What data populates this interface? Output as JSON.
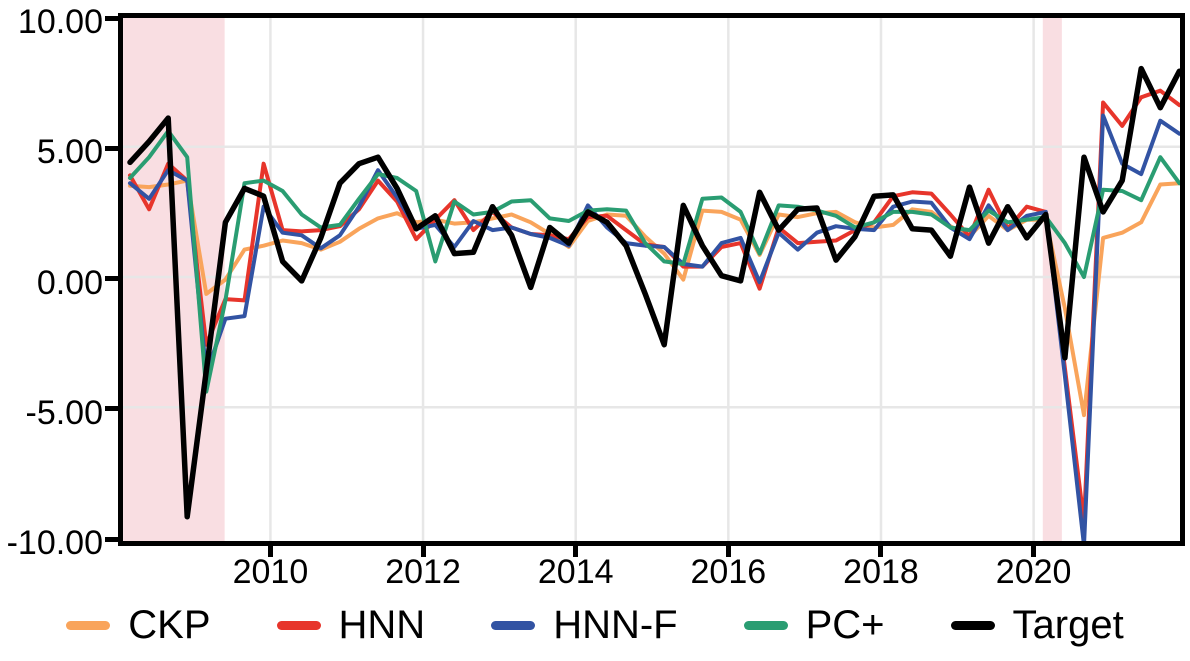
{
  "figure": {
    "background": "#ffffff"
  },
  "axes": {
    "yticks": [
      {
        "value": 10,
        "label": "10.00"
      },
      {
        "value": 5,
        "label": "5.00"
      },
      {
        "value": 0,
        "label": "0.00"
      },
      {
        "value": -5,
        "label": "-5.00"
      },
      {
        "value": -10,
        "label": "-10.00"
      }
    ],
    "xticks": [
      {
        "value": 2010,
        "label": "2010"
      },
      {
        "value": 2012,
        "label": "2012"
      },
      {
        "value": 2014,
        "label": "2014"
      },
      {
        "value": 2016,
        "label": "2016"
      },
      {
        "value": 2018,
        "label": "2018"
      },
      {
        "value": 2020,
        "label": "2020"
      }
    ]
  },
  "chart_data": {
    "type": "line",
    "title": "",
    "xlabel": "",
    "ylabel": "",
    "ylim": [
      -10,
      10
    ],
    "xlim_time": [
      2008.07,
      2022.0
    ],
    "grid": true,
    "gridline_color": "#E7E7E7",
    "legend_position": "bottom",
    "recession_band_color": "#F9DEE2",
    "recession_bands_time": [
      [
        2008.07,
        2009.4
      ],
      [
        2020.12,
        2020.37
      ]
    ],
    "quarters": [
      "2008Q1",
      "2008Q2",
      "2008Q3",
      "2008Q4",
      "2009Q1",
      "2009Q2",
      "2009Q3",
      "2009Q4",
      "2010Q1",
      "2010Q2",
      "2010Q3",
      "2010Q4",
      "2011Q1",
      "2011Q2",
      "2011Q3",
      "2011Q4",
      "2012Q1",
      "2012Q2",
      "2012Q3",
      "2012Q4",
      "2013Q1",
      "2013Q2",
      "2013Q3",
      "2013Q4",
      "2014Q1",
      "2014Q2",
      "2014Q3",
      "2014Q4",
      "2015Q1",
      "2015Q2",
      "2015Q3",
      "2015Q4",
      "2016Q1",
      "2016Q2",
      "2016Q3",
      "2016Q4",
      "2017Q1",
      "2017Q2",
      "2017Q3",
      "2017Q4",
      "2018Q1",
      "2018Q2",
      "2018Q3",
      "2018Q4",
      "2019Q1",
      "2019Q2",
      "2019Q3",
      "2019Q4",
      "2020Q1",
      "2020Q2",
      "2020Q3",
      "2020Q4",
      "2021Q1",
      "2021Q2",
      "2021Q3",
      "2021Q4"
    ],
    "series": [
      {
        "name": "CKP",
        "color": "#F9A45B",
        "width": 4,
        "values": [
          3.5,
          3.45,
          3.55,
          3.7,
          -0.65,
          -0.1,
          1.05,
          1.2,
          1.4,
          1.3,
          1.05,
          1.35,
          1.85,
          2.25,
          2.45,
          2.1,
          2.2,
          2.05,
          2.1,
          2.25,
          2.4,
          2.1,
          1.65,
          1.15,
          2.15,
          2.4,
          2.35,
          1.55,
          0.9,
          -0.1,
          2.55,
          2.5,
          2.2,
          0.85,
          2.4,
          2.3,
          2.45,
          2.5,
          2.1,
          1.9,
          2.0,
          2.6,
          2.5,
          1.95,
          1.55,
          2.35,
          1.8,
          2.2,
          2.2,
          -1.2,
          -5.3,
          1.5,
          1.7,
          2.1,
          3.55,
          3.6
        ]
      },
      {
        "name": "HNN",
        "color": "#E7352B",
        "width": 4,
        "values": [
          3.9,
          2.6,
          4.35,
          3.7,
          -2.6,
          -0.85,
          -0.9,
          4.35,
          1.8,
          1.75,
          1.8,
          1.95,
          2.6,
          3.7,
          2.9,
          1.45,
          2.2,
          2.95,
          1.8,
          2.5,
          1.9,
          1.65,
          1.6,
          1.45,
          2.3,
          2.35,
          1.8,
          1.25,
          1.15,
          0.4,
          0.4,
          1.15,
          1.3,
          -0.45,
          1.9,
          1.3,
          1.35,
          1.4,
          1.8,
          2.1,
          3.1,
          3.25,
          3.2,
          2.4,
          1.55,
          3.35,
          1.85,
          2.7,
          2.5,
          -3.5,
          -9.4,
          6.7,
          5.8,
          6.9,
          7.15,
          6.6
        ]
      },
      {
        "name": "HNN-F",
        "color": "#3253A3",
        "width": 4,
        "values": [
          3.6,
          3.0,
          4.1,
          3.7,
          -3.7,
          -1.6,
          -1.5,
          2.7,
          1.7,
          1.6,
          1.1,
          1.6,
          2.7,
          4.1,
          3.05,
          1.85,
          2.0,
          1.15,
          2.15,
          1.8,
          1.9,
          1.65,
          1.5,
          1.2,
          2.75,
          1.9,
          1.3,
          1.2,
          1.15,
          0.5,
          0.4,
          1.3,
          1.5,
          -0.2,
          1.7,
          1.05,
          1.7,
          1.95,
          1.85,
          1.8,
          2.7,
          2.9,
          2.85,
          1.9,
          1.45,
          2.75,
          1.8,
          2.35,
          2.5,
          -3.8,
          -10.3,
          6.2,
          4.35,
          3.95,
          6.0,
          5.5
        ]
      },
      {
        "name": "PC+",
        "color": "#2A9D72",
        "width": 4,
        "values": [
          3.8,
          4.6,
          5.6,
          4.6,
          -4.4,
          -0.9,
          3.6,
          3.7,
          3.3,
          2.4,
          1.9,
          2.0,
          3.0,
          3.95,
          3.8,
          3.3,
          0.6,
          2.9,
          2.4,
          2.5,
          2.9,
          2.95,
          2.25,
          2.15,
          2.55,
          2.6,
          2.55,
          1.3,
          0.6,
          0.5,
          3.0,
          3.05,
          2.5,
          0.9,
          2.75,
          2.7,
          2.55,
          2.35,
          1.9,
          2.1,
          2.5,
          2.5,
          2.4,
          1.9,
          1.8,
          2.55,
          2.1,
          2.2,
          2.3,
          1.3,
          0.0,
          3.35,
          3.3,
          2.95,
          4.6,
          3.6
        ]
      },
      {
        "name": "Target",
        "color": "#000000",
        "width": 5.5,
        "values": [
          4.4,
          5.2,
          6.1,
          -9.2,
          -3.6,
          2.1,
          3.4,
          3.1,
          0.6,
          -0.15,
          1.5,
          3.6,
          4.35,
          4.6,
          3.4,
          1.85,
          2.35,
          0.9,
          0.95,
          2.7,
          1.6,
          -0.4,
          1.9,
          1.3,
          2.5,
          2.1,
          1.2,
          -0.65,
          -2.6,
          2.75,
          1.2,
          0.05,
          -0.15,
          3.25,
          1.8,
          2.6,
          2.65,
          0.65,
          1.55,
          3.1,
          3.15,
          1.85,
          1.8,
          0.8,
          3.45,
          1.3,
          2.7,
          1.5,
          2.4,
          -3.1,
          4.6,
          2.5,
          3.7,
          8.0,
          6.5,
          7.9
        ]
      }
    ]
  }
}
